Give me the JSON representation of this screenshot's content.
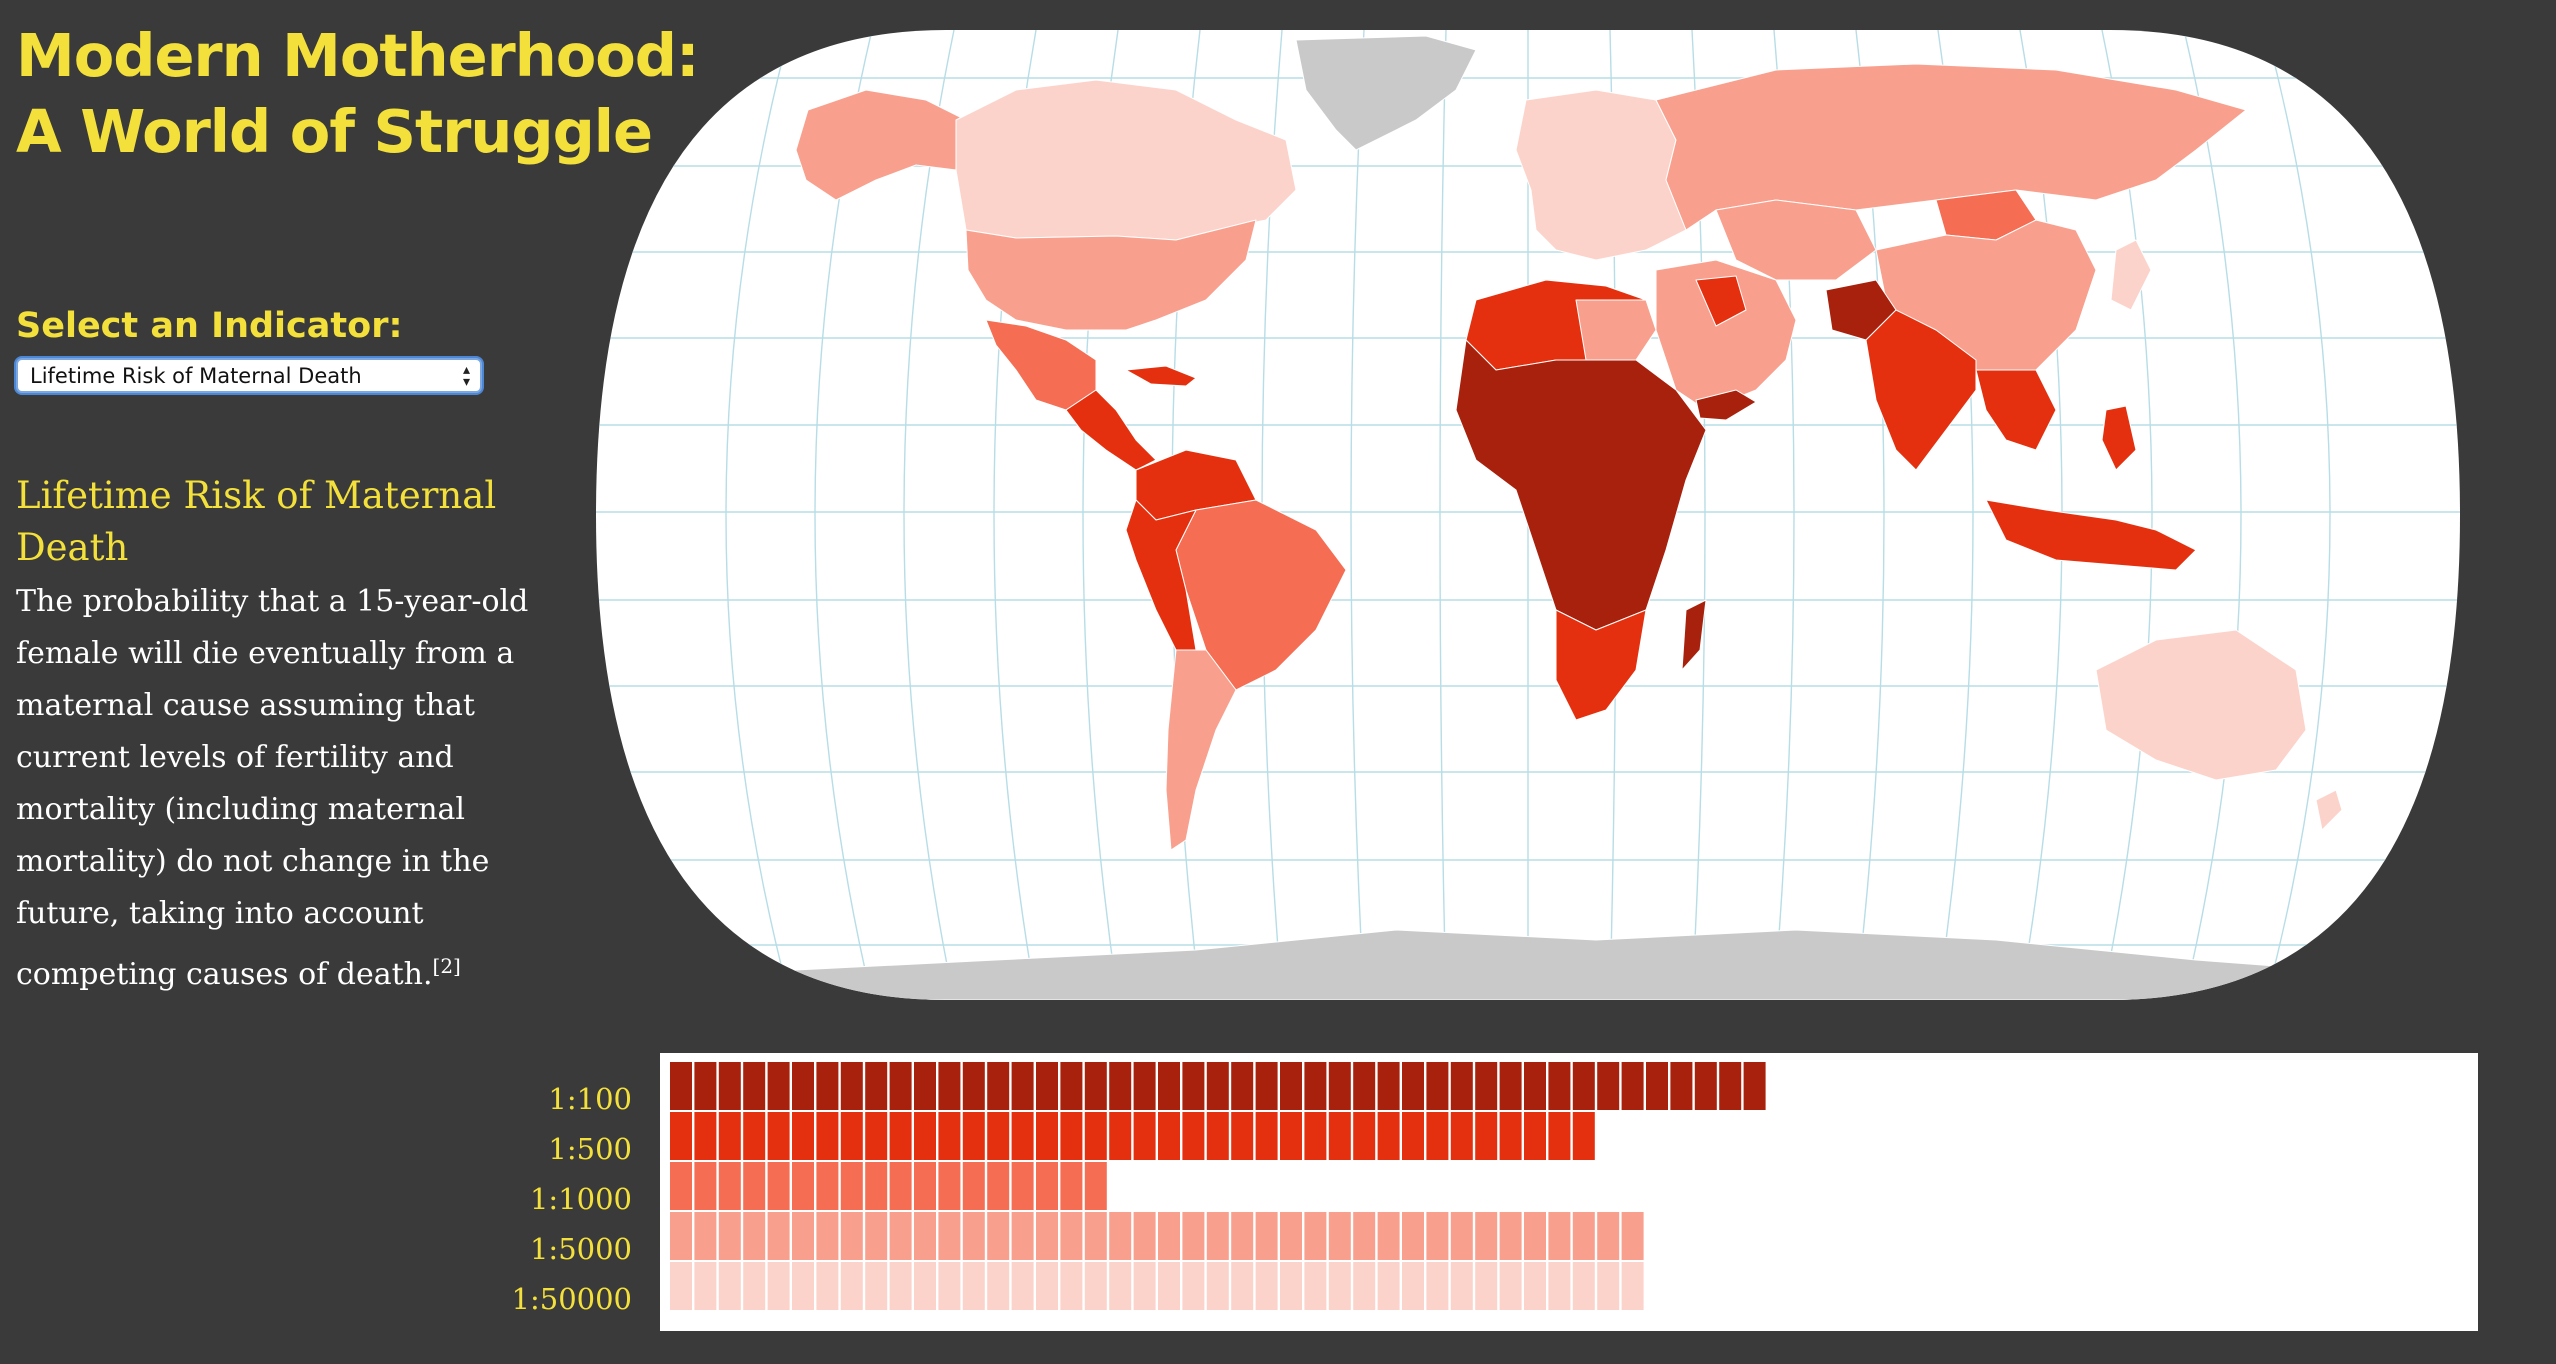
{
  "title": {
    "line1": "Modern Motherhood:",
    "line2": "A World of Struggle"
  },
  "indicator": {
    "label": "Select an Indicator:",
    "selected": "Lifetime Risk of Maternal Death"
  },
  "info": {
    "heading": "Lifetime Risk of Maternal Death",
    "description": "The probability that a 15-year-old female will die eventually from a maternal cause assuming that current levels of fertility and mortality (including maternal mortality) do not change in the future, taking into account competing causes of death.",
    "footnote": "[2]"
  },
  "colors": {
    "background": "#3a3a3a",
    "title": "#f4e03a",
    "ocean": "#ffffff",
    "graticule": "#b7dde6",
    "no_data": "#c9c9c9",
    "bin_1_100": "#a8210d",
    "bin_1_500": "#e5300f",
    "bin_1_1000": "#f56d52",
    "bin_1_5000": "#f8a08d",
    "bin_1_50000": "#fcd3cb"
  },
  "chart_data": {
    "type": "bar",
    "unit": "countries",
    "categories": [
      "1:100",
      "1:500",
      "1:1000",
      "1:5000",
      "1:50000"
    ],
    "values": [
      45,
      38,
      18,
      40,
      40
    ],
    "colors": [
      "#a8210d",
      "#e5300f",
      "#f56d52",
      "#f8a08d",
      "#fcd3cb"
    ]
  }
}
